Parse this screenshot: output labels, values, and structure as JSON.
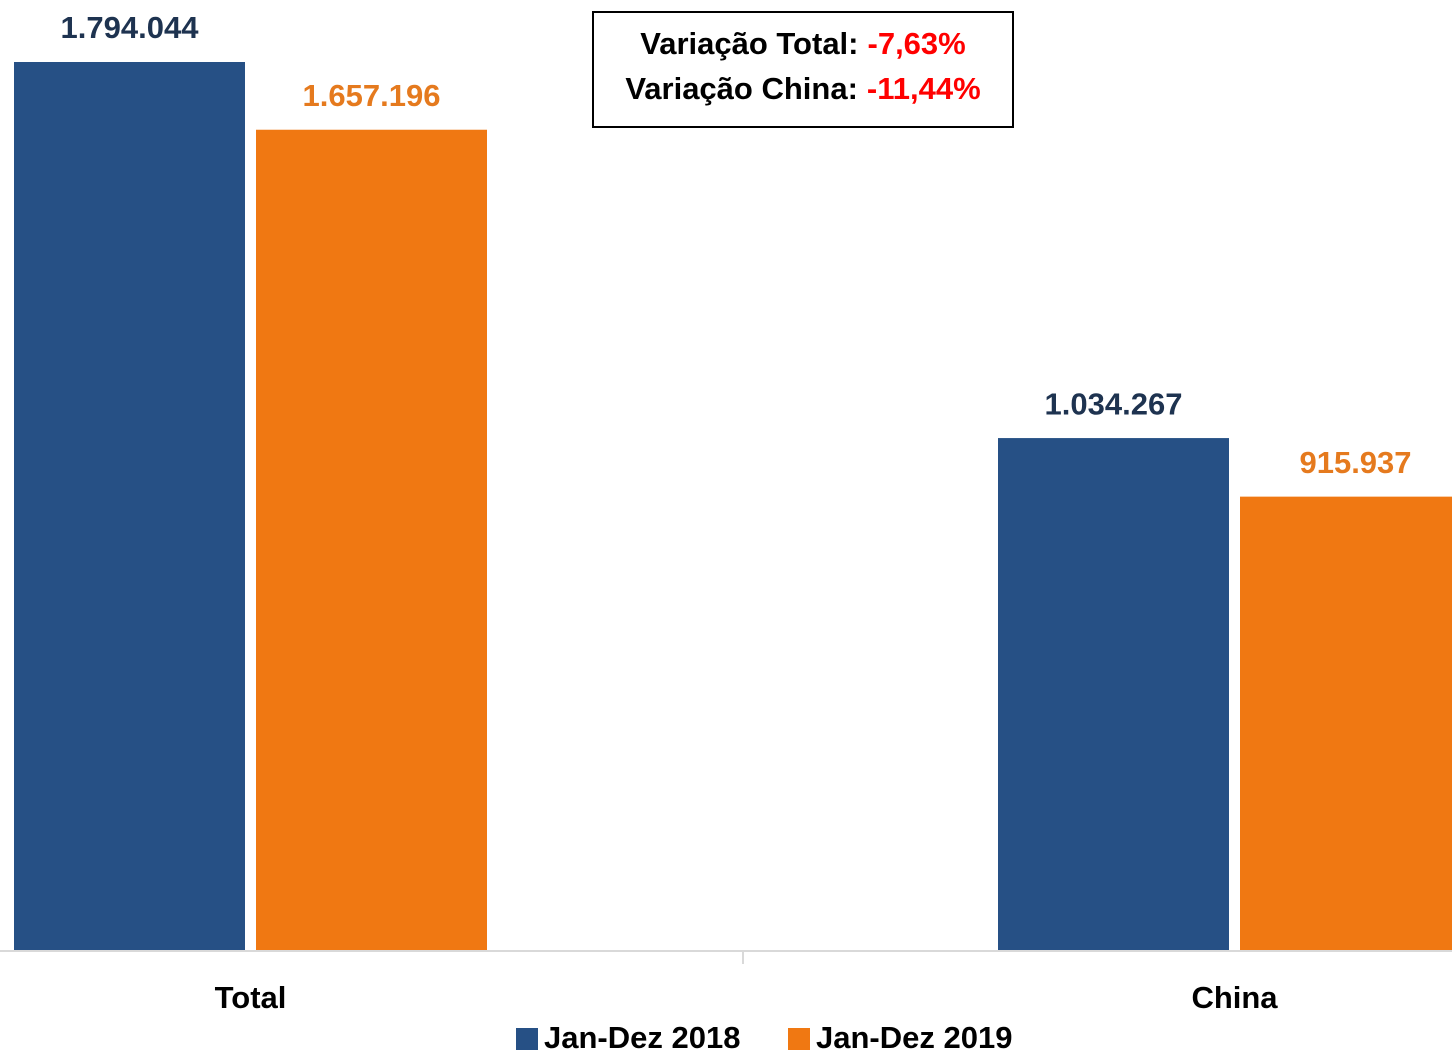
{
  "chart_data": {
    "type": "bar",
    "categories": [
      "Total",
      "China"
    ],
    "series": [
      {
        "name": "Jan-Dez 2018",
        "color": "#265085",
        "values": [
          1794044,
          1034267
        ],
        "value_labels": [
          "1.794.044",
          "1.034.267"
        ]
      },
      {
        "name": "Jan-Dez 2019",
        "color": "#f07812",
        "values": [
          1657196,
          915937
        ],
        "value_labels": [
          "1.657.196",
          "915.937"
        ]
      }
    ],
    "annotations": [
      {
        "label": "Variação Total:",
        "value": "-7,63%"
      },
      {
        "label": "Variação China:",
        "value": "-11,44%"
      }
    ],
    "legend": "bottom"
  }
}
